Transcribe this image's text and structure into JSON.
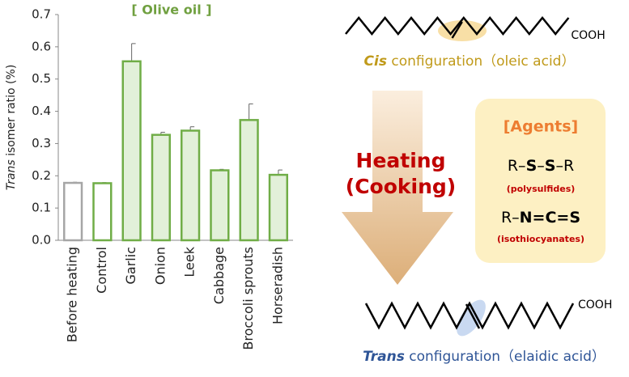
{
  "chart_data": {
    "type": "bar",
    "title": "[ Olive oil ]",
    "y_label": {
      "italic": "Trans",
      "rest": "isomer ratio (%)"
    },
    "categories": [
      "Before heating",
      "Control",
      "Garlic",
      "Onion",
      "Leek",
      "Cabbage",
      "Broccoli sprouts",
      "Horseradish"
    ],
    "values": [
      0.178,
      0.177,
      0.555,
      0.327,
      0.34,
      0.217,
      0.373,
      0.203
    ],
    "errors": [
      0.002,
      0.002,
      0.055,
      0.008,
      0.012,
      0.003,
      0.05,
      0.015
    ],
    "edge_colors": [
      "#a6a6a6",
      "#70ad47",
      "#70ad47",
      "#70ad47",
      "#70ad47",
      "#70ad47",
      "#70ad47",
      "#70ad47"
    ],
    "fill_colors": [
      "#ffffff",
      "#ffffff",
      "#e2f0d9",
      "#e2f0d9",
      "#e2f0d9",
      "#e2f0d9",
      "#e2f0d9",
      "#e2f0d9"
    ],
    "ylim": [
      0,
      0.7
    ],
    "yticks": [
      {
        "value": 0,
        "label": "0.0"
      },
      0.1,
      0.2,
      0.3,
      0.4,
      0.5,
      0.6,
      0.7
    ]
  },
  "diagram": {
    "cis": {
      "group": "COOH",
      "italic": "Cis",
      "rest": "configuration（oleic acid）"
    },
    "process": [
      "Heating",
      "(Cooking)"
    ],
    "agents": {
      "title": "[Agents]",
      "items": [
        {
          "parts": [
            "R–",
            "S",
            "–",
            "S",
            "–R"
          ],
          "label": "(polysulfides)"
        },
        {
          "parts": [
            "R–",
            "N=C=S"
          ],
          "label": "(isothiocyanates)"
        }
      ]
    },
    "trans": {
      "group": "COOH",
      "italic": "Trans",
      "rest": "configuration（elaidic acid）"
    }
  }
}
